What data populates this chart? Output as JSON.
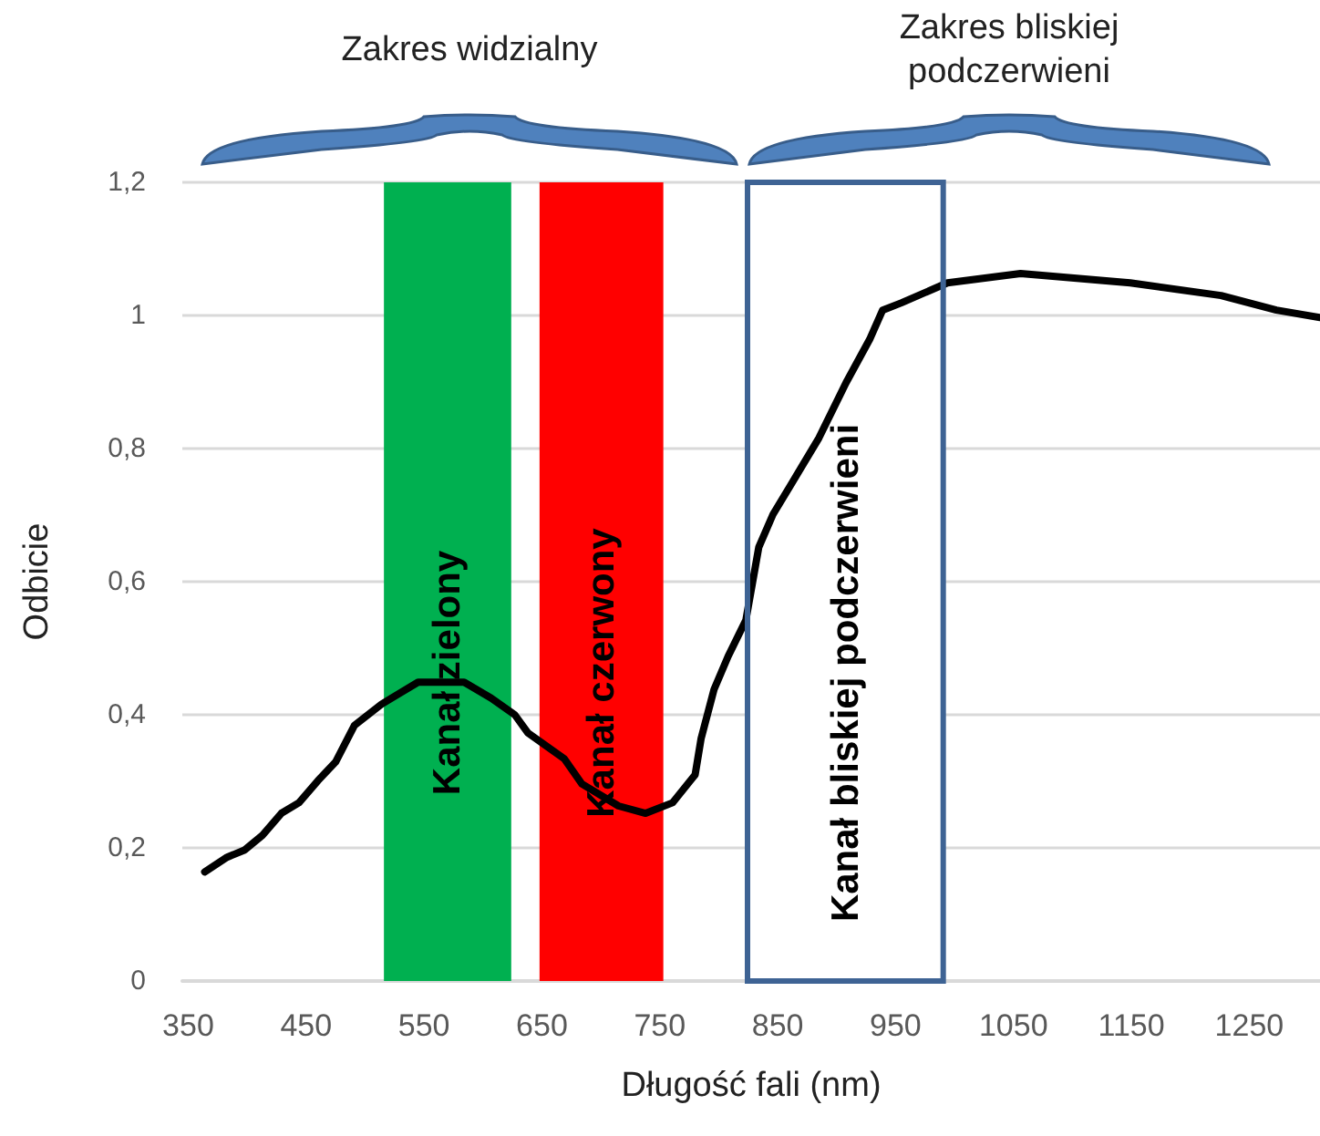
{
  "chart_data": {
    "type": "line",
    "xlabel": "Długość fali (nm)",
    "ylabel": "Odbicie",
    "x": [
      364,
      383,
      398,
      413,
      429,
      444,
      460,
      475,
      491,
      514,
      545,
      584,
      607,
      627,
      638,
      669,
      684,
      715,
      738,
      761,
      780,
      785,
      796,
      808,
      823,
      834,
      846,
      862,
      885,
      908,
      928,
      939,
      955,
      994,
      1056,
      1149,
      1226,
      1273,
      1310
    ],
    "series": [
      {
        "color": "#000000",
        "values": [
          0.164,
          0.186,
          0.197,
          0.219,
          0.252,
          0.268,
          0.301,
          0.329,
          0.384,
          0.416,
          0.449,
          0.449,
          0.425,
          0.4,
          0.373,
          0.334,
          0.296,
          0.263,
          0.252,
          0.268,
          0.31,
          0.364,
          0.438,
          0.488,
          0.542,
          0.652,
          0.701,
          0.748,
          0.816,
          0.899,
          0.964,
          1.008,
          1.019,
          1.049,
          1.063,
          1.049,
          1.03,
          1.008,
          0.997
        ]
      }
    ],
    "xlim": [
      345,
      1310
    ],
    "xticks": [
      350,
      450,
      550,
      650,
      750,
      850,
      950,
      1050,
      1150,
      1250
    ],
    "ylim": [
      0,
      1.2
    ],
    "yticks": [
      0,
      {
        "value": 0.2,
        "label": "0,2"
      },
      {
        "value": 0.4,
        "label": "0,4"
      },
      {
        "value": 0.6,
        "label": "0,6"
      },
      {
        "value": 0.8,
        "label": "0,8"
      },
      1,
      {
        "value": 1.2,
        "label": "1,2"
      }
    ],
    "grid": "y",
    "marker": "none",
    "line_style": "solid",
    "bands": [
      {
        "axis": "x",
        "from": 516,
        "to": 624,
        "label": "Kanał zielony",
        "color": "#00b050"
      },
      {
        "axis": "x",
        "from": 648,
        "to": 753,
        "label": "Kanał czerwony",
        "color": "#ff0000"
      },
      {
        "axis": "x",
        "from": 825,
        "to": 991,
        "label": "Kanał bliskiej podczerwieni",
        "color": "#ffffff"
      }
    ],
    "annotations": [
      "Zakres widzialny",
      "Zakres bliskiej podczerwieni"
    ]
  }
}
